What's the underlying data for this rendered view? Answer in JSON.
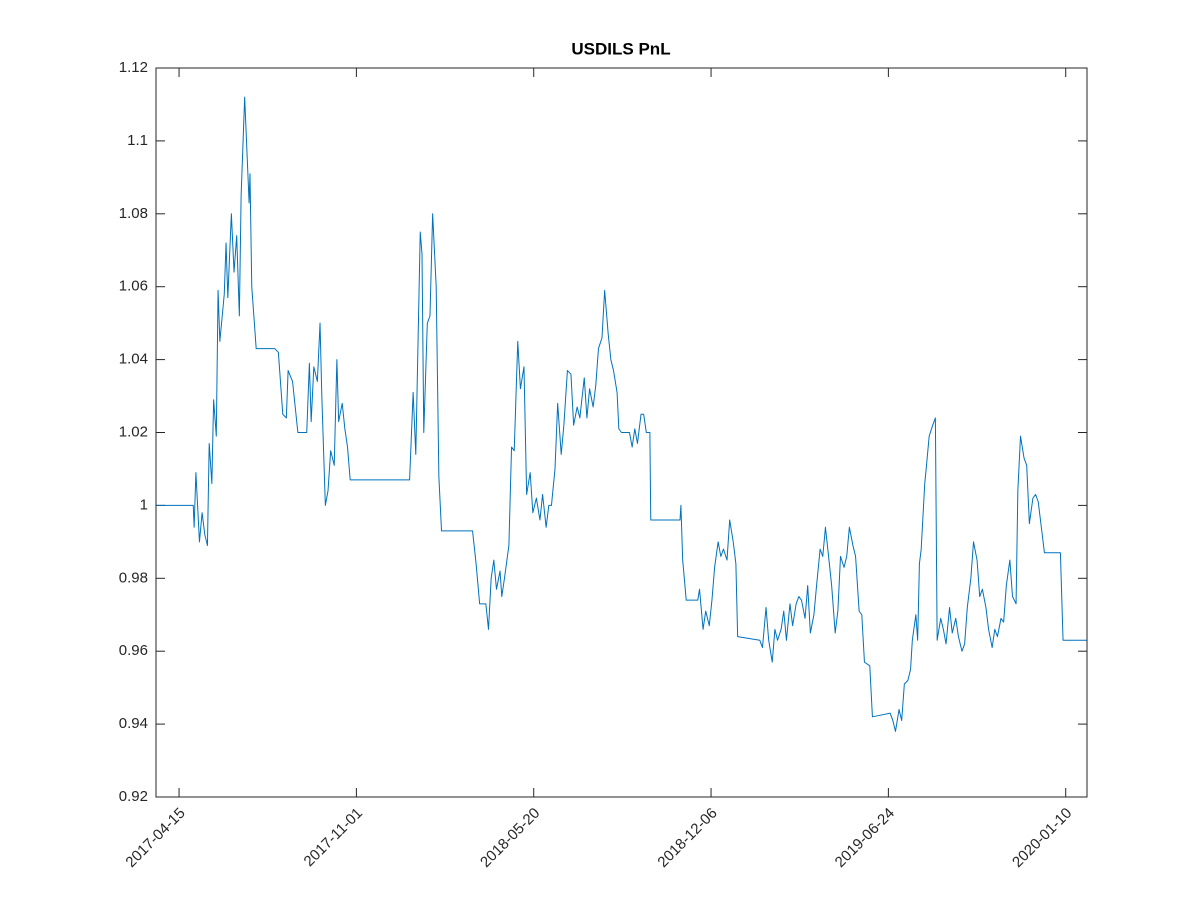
{
  "chart_data": {
    "type": "line",
    "title": "USDILS PnL",
    "color": "#0072bd",
    "xlim": [
      "2017-03-20",
      "2020-02-03"
    ],
    "xticks": [
      "2017-04-15",
      "2017-11-01",
      "2018-05-20",
      "2018-12-06",
      "2019-06-24",
      "2020-01-10"
    ],
    "ylim": [
      0.92,
      1.12
    ],
    "yticks": [
      0.92,
      0.94,
      0.96,
      0.98,
      1,
      1.02,
      1.04,
      1.06,
      1.08,
      1.1,
      1.12
    ],
    "x": [
      "2017-03-20",
      "2017-05-01",
      "2017-05-02",
      "2017-05-04",
      "2017-05-08",
      "2017-05-11",
      "2017-05-14",
      "2017-05-17",
      "2017-05-19",
      "2017-05-22",
      "2017-05-24",
      "2017-05-27",
      "2017-05-29",
      "2017-05-31",
      "2017-06-05",
      "2017-06-07",
      "2017-06-09",
      "2017-06-13",
      "2017-06-16",
      "2017-06-19",
      "2017-06-22",
      "2017-06-24",
      "2017-06-28",
      "2017-07-03",
      "2017-07-04",
      "2017-07-06",
      "2017-07-11",
      "2017-08-01",
      "2017-08-05",
      "2017-08-10",
      "2017-08-14",
      "2017-08-16",
      "2017-08-21",
      "2017-08-27",
      "2017-09-06",
      "2017-09-09",
      "2017-09-11",
      "2017-09-14",
      "2017-09-18",
      "2017-09-21",
      "2017-09-23",
      "2017-09-27",
      "2017-09-30",
      "2017-10-03",
      "2017-10-07",
      "2017-10-10",
      "2017-10-12",
      "2017-10-16",
      "2017-10-19",
      "2017-10-22",
      "2017-10-25",
      "2017-12-31",
      "2018-01-04",
      "2018-01-07",
      "2018-01-12",
      "2018-01-14",
      "2018-01-16",
      "2018-01-20",
      "2018-01-23",
      "2018-01-26",
      "2018-01-30",
      "2018-02-02",
      "2018-02-05",
      "2018-03-12",
      "2018-03-16",
      "2018-03-20",
      "2018-03-27",
      "2018-03-30",
      "2018-04-02",
      "2018-04-05",
      "2018-04-08",
      "2018-04-12",
      "2018-04-14",
      "2018-04-17",
      "2018-04-22",
      "2018-04-25",
      "2018-04-28",
      "2018-05-02",
      "2018-05-05",
      "2018-05-09",
      "2018-05-12",
      "2018-05-16",
      "2018-05-19",
      "2018-05-23",
      "2018-05-27",
      "2018-05-30",
      "2018-06-03",
      "2018-06-06",
      "2018-06-09",
      "2018-06-13",
      "2018-06-16",
      "2018-06-20",
      "2018-06-23",
      "2018-06-27",
      "2018-07-01",
      "2018-07-04",
      "2018-07-08",
      "2018-07-11",
      "2018-07-16",
      "2018-07-19",
      "2018-07-22",
      "2018-07-26",
      "2018-07-29",
      "2018-08-01",
      "2018-08-05",
      "2018-08-08",
      "2018-08-12",
      "2018-08-15",
      "2018-08-18",
      "2018-08-22",
      "2018-08-24",
      "2018-08-27",
      "2018-09-05",
      "2018-09-08",
      "2018-09-11",
      "2018-09-14",
      "2018-09-18",
      "2018-09-21",
      "2018-09-24",
      "2018-09-28",
      "2018-09-29",
      "2018-11-01",
      "2018-11-02",
      "2018-11-04",
      "2018-11-08",
      "2018-11-21",
      "2018-11-23",
      "2018-11-27",
      "2018-11-30",
      "2018-12-04",
      "2018-12-07",
      "2018-12-10",
      "2018-12-14",
      "2018-12-17",
      "2018-12-20",
      "2018-12-24",
      "2018-12-27",
      "2018-12-31",
      "2019-01-03",
      "2019-01-05",
      "2019-01-30",
      "2019-02-02",
      "2019-02-06",
      "2019-02-09",
      "2019-02-13",
      "2019-02-16",
      "2019-02-19",
      "2019-02-23",
      "2019-02-26",
      "2019-03-01",
      "2019-03-05",
      "2019-03-08",
      "2019-03-12",
      "2019-03-15",
      "2019-03-18",
      "2019-03-22",
      "2019-03-25",
      "2019-03-28",
      "2019-04-01",
      "2019-04-04",
      "2019-04-08",
      "2019-04-11",
      "2019-04-14",
      "2019-04-18",
      "2019-04-21",
      "2019-04-25",
      "2019-04-28",
      "2019-05-01",
      "2019-05-05",
      "2019-05-08",
      "2019-05-11",
      "2019-05-15",
      "2019-05-18",
      "2019-05-22",
      "2019-05-25",
      "2019-05-28",
      "2019-06-03",
      "2019-06-06",
      "2019-06-26",
      "2019-06-29",
      "2019-07-02",
      "2019-07-06",
      "2019-07-09",
      "2019-07-12",
      "2019-07-16",
      "2019-07-19",
      "2019-07-21",
      "2019-07-25",
      "2019-07-27",
      "2019-07-29",
      "2019-07-31",
      "2019-08-04",
      "2019-08-06",
      "2019-08-09",
      "2019-08-13",
      "2019-08-16",
      "2019-08-18",
      "2019-08-22",
      "2019-08-25",
      "2019-08-28",
      "2019-09-01",
      "2019-09-04",
      "2019-09-08",
      "2019-09-11",
      "2019-09-15",
      "2019-09-18",
      "2019-09-21",
      "2019-09-25",
      "2019-09-28",
      "2019-10-02",
      "2019-10-05",
      "2019-10-08",
      "2019-10-12",
      "2019-10-15",
      "2019-10-19",
      "2019-10-22",
      "2019-10-25",
      "2019-10-29",
      "2019-11-01",
      "2019-11-04",
      "2019-11-08",
      "2019-11-11",
      "2019-11-15",
      "2019-11-17",
      "2019-11-20",
      "2019-11-24",
      "2019-11-27",
      "2019-11-30",
      "2019-12-04",
      "2019-12-07",
      "2019-12-10",
      "2019-12-14",
      "2019-12-17",
      "2020-01-04",
      "2020-01-07",
      "2020-02-03"
    ],
    "values": [
      1.0,
      1.0,
      0.994,
      1.009,
      0.99,
      0.998,
      0.992,
      0.989,
      1.017,
      1.006,
      1.029,
      1.019,
      1.059,
      1.045,
      1.058,
      1.072,
      1.057,
      1.08,
      1.064,
      1.074,
      1.052,
      1.085,
      1.112,
      1.083,
      1.091,
      1.06,
      1.043,
      1.043,
      1.042,
      1.025,
      1.024,
      1.037,
      1.034,
      1.02,
      1.02,
      1.039,
      1.023,
      1.038,
      1.034,
      1.05,
      1.03,
      1.0,
      1.004,
      1.015,
      1.011,
      1.04,
      1.023,
      1.028,
      1.021,
      1.016,
      1.007,
      1.007,
      1.031,
      1.014,
      1.075,
      1.069,
      1.02,
      1.05,
      1.052,
      1.08,
      1.06,
      1.008,
      0.993,
      0.993,
      0.984,
      0.973,
      0.973,
      0.966,
      0.98,
      0.985,
      0.977,
      0.982,
      0.975,
      0.98,
      0.989,
      1.016,
      1.015,
      1.045,
      1.032,
      1.038,
      1.003,
      1.009,
      0.998,
      1.002,
      0.996,
      1.003,
      0.994,
      1.0,
      1.0,
      1.01,
      1.028,
      1.014,
      1.022,
      1.037,
      1.036,
      1.022,
      1.027,
      1.024,
      1.035,
      1.024,
      1.032,
      1.027,
      1.033,
      1.043,
      1.046,
      1.059,
      1.047,
      1.04,
      1.037,
      1.031,
      1.021,
      1.02,
      1.02,
      1.016,
      1.021,
      1.017,
      1.025,
      1.025,
      1.02,
      1.02,
      0.996,
      0.996,
      1.0,
      0.985,
      0.974,
      0.974,
      0.977,
      0.966,
      0.971,
      0.967,
      0.974,
      0.983,
      0.99,
      0.986,
      0.988,
      0.985,
      0.996,
      0.99,
      0.984,
      0.964,
      0.963,
      0.961,
      0.972,
      0.963,
      0.957,
      0.966,
      0.963,
      0.966,
      0.971,
      0.963,
      0.973,
      0.967,
      0.973,
      0.975,
      0.974,
      0.969,
      0.978,
      0.965,
      0.97,
      0.978,
      0.988,
      0.986,
      0.994,
      0.985,
      0.978,
      0.965,
      0.971,
      0.986,
      0.983,
      0.986,
      0.994,
      0.989,
      0.986,
      0.971,
      0.97,
      0.957,
      0.956,
      0.942,
      0.943,
      0.941,
      0.938,
      0.944,
      0.941,
      0.951,
      0.952,
      0.955,
      0.963,
      0.97,
      0.963,
      0.984,
      0.988,
      1.006,
      1.011,
      1.019,
      1.022,
      1.024,
      0.963,
      0.969,
      0.966,
      0.962,
      0.972,
      0.965,
      0.969,
      0.964,
      0.96,
      0.962,
      0.972,
      0.98,
      0.99,
      0.985,
      0.975,
      0.977,
      0.972,
      0.966,
      0.961,
      0.966,
      0.964,
      0.969,
      0.968,
      0.978,
      0.985,
      0.975,
      0.973,
      1.004,
      1.019,
      1.013,
      1.011,
      0.995,
      1.002,
      1.003,
      1.001,
      0.993,
      0.987,
      0.987,
      0.963,
      0.963
    ]
  }
}
